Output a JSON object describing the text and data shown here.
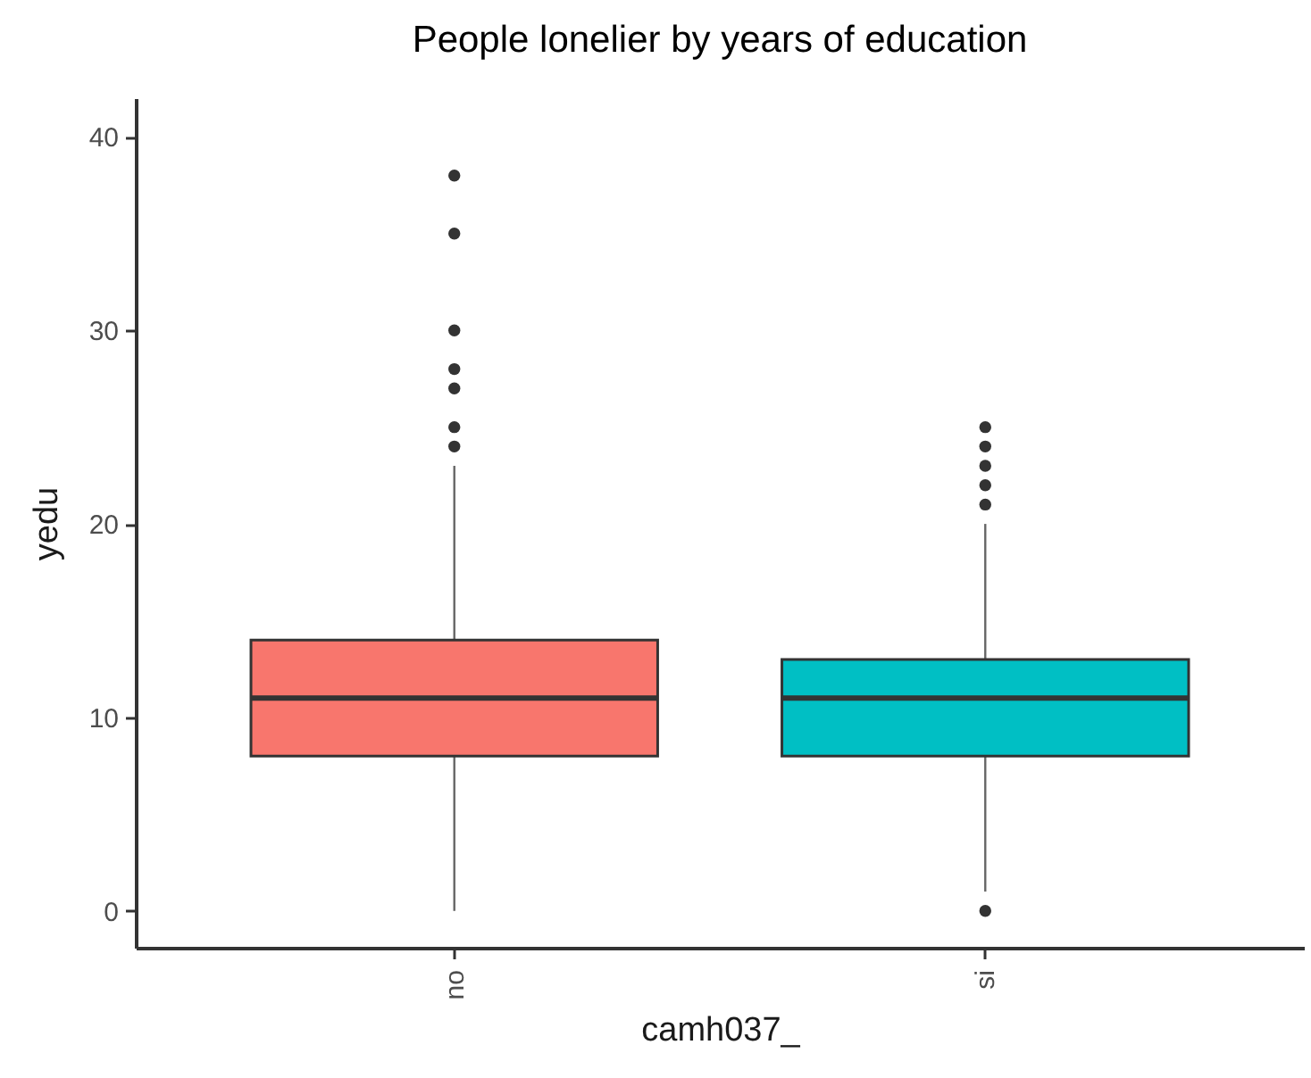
{
  "chart_data": {
    "type": "box",
    "title": "People lonelier by years of education",
    "xlabel": "camh037_",
    "ylabel": "yedu",
    "categories": [
      "no",
      "si"
    ],
    "colors": [
      "#f8766d",
      "#00bfc4"
    ],
    "boxes": [
      {
        "low": 0,
        "q1": 8,
        "median": 11,
        "q3": 14,
        "high": 23,
        "outliers": [
          24,
          25,
          27,
          28,
          30,
          35,
          38
        ]
      },
      {
        "low": 1,
        "q1": 8,
        "median": 11,
        "q3": 13,
        "high": 20,
        "outliers": [
          0,
          21,
          22,
          23,
          24,
          25
        ]
      }
    ],
    "ylim": [
      -1.9,
      42
    ],
    "yticks": [
      0,
      10,
      20,
      30,
      40
    ],
    "grid": false
  }
}
